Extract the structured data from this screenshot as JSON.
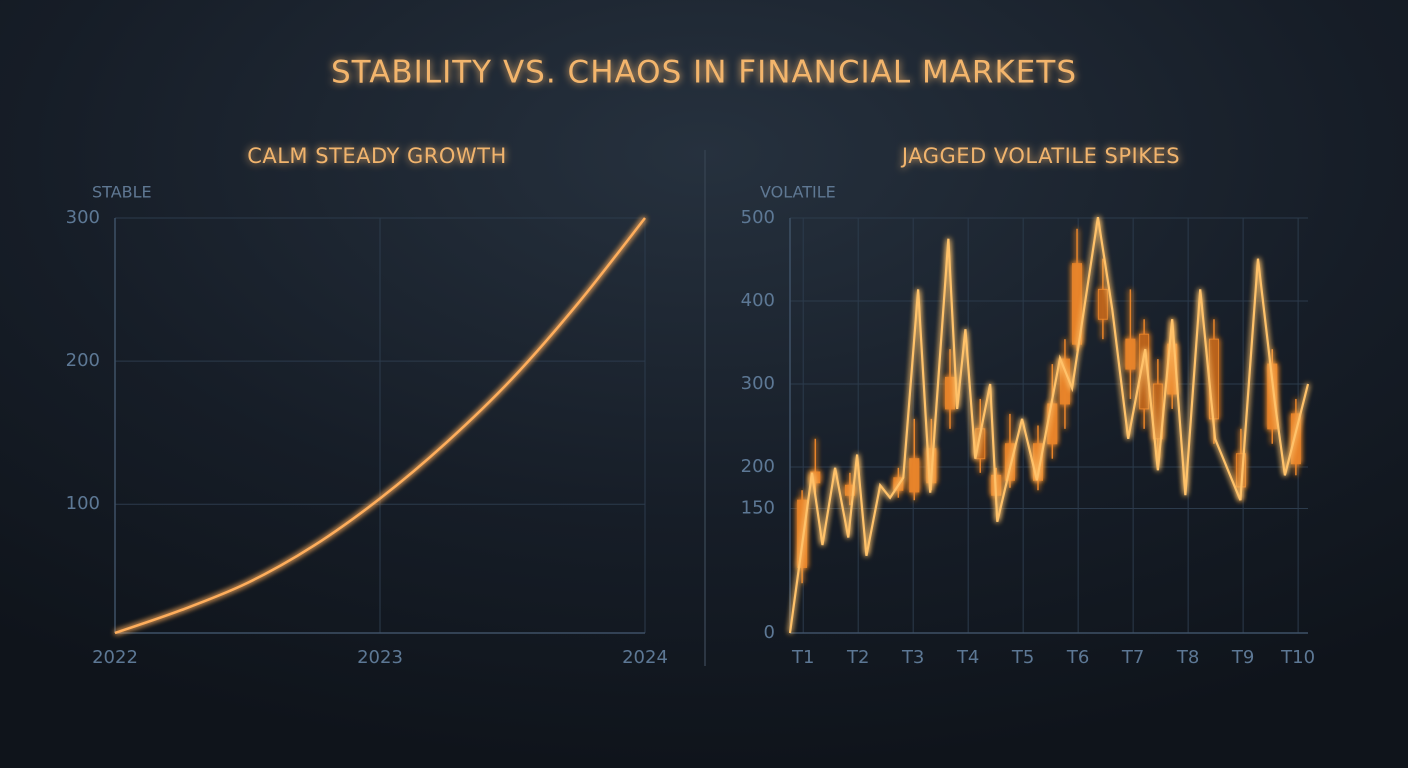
{
  "title": "STABILITY VS. CHAOS IN FINANCIAL MARKETS",
  "chart_data": [
    {
      "type": "line",
      "title": "CALM STEADY GROWTH",
      "y_label": "STABLE",
      "color": "#ffae5c",
      "grid": true,
      "x": [
        2022,
        2022.25,
        2022.5,
        2022.75,
        2023,
        2023.25,
        2023.5,
        2023.75,
        2024
      ],
      "values": [
        10,
        26,
        45,
        71,
        104,
        143,
        188,
        241,
        300
      ],
      "xlim": [
        2022,
        2024
      ],
      "xticks": [
        2022,
        2023,
        2024
      ],
      "ylim": [
        10,
        300
      ],
      "yticks": [
        100,
        200,
        300
      ]
    },
    {
      "type": "candlestick",
      "title": "JAGGED VOLATILE SPIKES",
      "y_label": "VOLATILE",
      "color": "#e8842a",
      "grid": true,
      "x": [
        0.98,
        1.22,
        1.85,
        2.73,
        3.02,
        3.33,
        3.67,
        4.22,
        4.51,
        4.76,
        5.27,
        5.53,
        5.76,
        5.98,
        6.45,
        6.95,
        7.2,
        7.45,
        7.71,
        8.47,
        8.96,
        9.53,
        9.96
      ],
      "open": [
        79,
        181,
        166,
        172,
        170,
        181,
        270,
        246,
        166,
        184,
        184,
        228,
        276,
        348,
        414,
        318,
        360,
        300,
        288,
        354,
        216,
        246,
        204
      ],
      "close": [
        160,
        194,
        178,
        187,
        210,
        222,
        308,
        210,
        190,
        228,
        228,
        276,
        330,
        445,
        378,
        354,
        270,
        234,
        348,
        258,
        176,
        324,
        264
      ],
      "high": [
        172,
        234,
        193,
        199,
        258,
        258,
        342,
        282,
        199,
        264,
        250,
        324,
        354,
        487,
        451,
        414,
        378,
        330,
        378,
        378,
        246,
        342,
        282
      ],
      "low": [
        60,
        169,
        154,
        163,
        160,
        172,
        246,
        193,
        154,
        175,
        172,
        210,
        246,
        340,
        354,
        282,
        246,
        210,
        270,
        228,
        160,
        228,
        190
      ],
      "line": {
        "color": "#ffc26a",
        "x": [
          0.76,
          1.16,
          1.35,
          1.58,
          1.82,
          1.98,
          2.15,
          2.4,
          2.58,
          2.82,
          3.09,
          3.31,
          3.64,
          3.8,
          3.95,
          4.13,
          4.4,
          4.53,
          4.76,
          4.98,
          5.25,
          5.67,
          5.89,
          6.36,
          6.62,
          6.91,
          7.22,
          7.45,
          7.71,
          7.95,
          8.22,
          8.49,
          8.95,
          9.27,
          9.58,
          9.76,
          10.18
        ],
        "values": [
          0,
          193,
          106,
          199,
          115,
          215,
          93,
          178,
          163,
          187,
          414,
          169,
          475,
          270,
          366,
          210,
          300,
          134,
          199,
          258,
          184,
          331,
          295,
          501,
          390,
          234,
          342,
          196,
          378,
          166,
          414,
          234,
          160,
          451,
          276,
          190,
          300
        ]
      },
      "xlim": [
        0.76,
        10.18
      ],
      "xticks": [
        {
          "value": 1,
          "label": "T1"
        },
        {
          "value": 2,
          "label": "T2"
        },
        {
          "value": 3,
          "label": "T3"
        },
        {
          "value": 4,
          "label": "T4"
        },
        {
          "value": 5,
          "label": "T5"
        },
        {
          "value": 6,
          "label": "T6"
        },
        {
          "value": 7,
          "label": "T7"
        },
        {
          "value": 8,
          "label": "T8"
        },
        {
          "value": 9,
          "label": "T9"
        },
        {
          "value": 10,
          "label": "T10"
        }
      ],
      "ylim": [
        0,
        500
      ],
      "yticks": [
        0,
        150,
        200,
        300,
        400,
        500
      ]
    }
  ]
}
